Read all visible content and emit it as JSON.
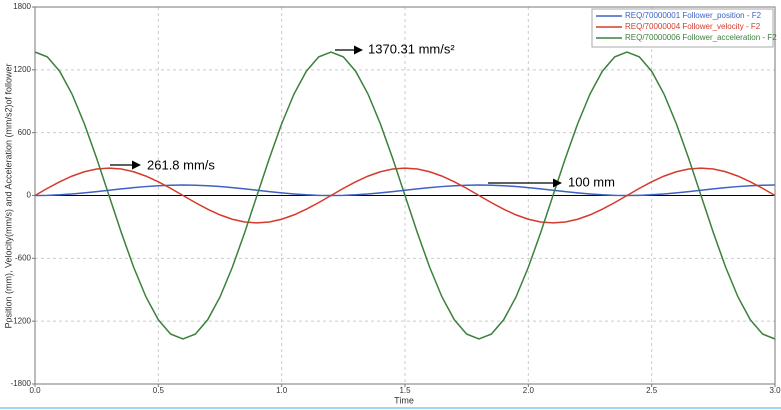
{
  "chart_data": {
    "type": "line",
    "x_label": "Time",
    "y_label": "Position (mm), Velocity(mm/s) and Acceleration (mm/s2)of follower",
    "annotations": [
      "261.8 mm/s",
      "1370.31 mm/s²",
      "100 mm"
    ],
    "legend": "top-right",
    "grid": true,
    "xlim": [
      0,
      3
    ],
    "ylim": [
      -1800,
      1800
    ],
    "xticks": [
      {
        "value": 0,
        "label": "0.0"
      },
      0.5,
      {
        "value": 1,
        "label": "1.0"
      },
      1.5,
      {
        "value": 2,
        "label": "2.0"
      },
      2.5,
      {
        "value": 3,
        "label": "3.0"
      }
    ],
    "yticks": [
      -1800,
      -1200,
      -600,
      0,
      600,
      1200,
      1800
    ],
    "x": [
      0,
      0.05,
      0.1,
      0.15,
      0.2,
      0.25,
      0.3,
      0.35,
      0.4,
      0.45,
      0.5,
      0.55,
      0.6,
      0.65,
      0.7,
      0.75,
      0.8,
      0.85,
      0.9,
      0.95,
      1,
      1.05,
      1.1,
      1.15,
      1.2,
      1.25,
      1.3,
      1.35,
      1.4,
      1.45,
      1.5,
      1.55,
      1.6,
      1.65,
      1.7,
      1.75,
      1.8,
      1.85,
      1.9,
      1.95,
      2,
      2.05,
      2.1,
      2.15,
      2.2,
      2.25,
      2.3,
      2.35,
      2.4,
      2.45,
      2.5,
      2.55,
      2.6,
      2.65,
      2.7,
      2.75,
      2.8,
      2.85,
      2.9,
      2.95,
      3
    ],
    "series": [
      {
        "name": "REQ/70000001 Follower_position - F2",
        "color": "#3e62c4",
        "values": [
          0,
          1.7,
          6.7,
          14.6,
          25,
          37.1,
          50,
          62.9,
          75,
          85.4,
          93.3,
          98.3,
          100,
          98.3,
          93.3,
          85.4,
          75,
          62.9,
          50,
          37.1,
          25,
          14.6,
          6.7,
          1.7,
          0,
          1.7,
          6.7,
          14.6,
          25,
          37.1,
          50,
          62.9,
          75,
          85.4,
          93.3,
          98.3,
          100,
          98.3,
          93.3,
          85.4,
          75,
          62.9,
          50,
          37.1,
          25,
          14.6,
          6.7,
          1.7,
          0,
          1.7,
          6.7,
          14.6,
          25,
          37.1,
          50,
          62.9,
          75,
          85.4,
          93.3,
          98.3,
          100
        ]
      },
      {
        "name": "REQ/70000004 Follower_velocity - F2",
        "color": "#d63a2a",
        "values": [
          0,
          67.8,
          130.9,
          185.1,
          226.7,
          252.9,
          261.8,
          252.9,
          226.7,
          185.1,
          130.9,
          67.8,
          0,
          -67.8,
          -130.9,
          -185.1,
          -226.7,
          -252.9,
          -261.8,
          -252.9,
          -226.7,
          -185.1,
          -130.9,
          -67.8,
          0,
          67.8,
          130.9,
          185.1,
          226.7,
          252.9,
          261.8,
          252.9,
          226.7,
          185.1,
          130.9,
          67.8,
          0,
          -67.8,
          -130.9,
          -185.1,
          -226.7,
          -252.9,
          -261.8,
          -252.9,
          -226.7,
          -185.1,
          -130.9,
          -67.8,
          0,
          67.8,
          130.9,
          185.1,
          226.7,
          252.9,
          261.8,
          252.9,
          226.7,
          185.1,
          130.9,
          67.8,
          0
        ]
      },
      {
        "name": "REQ/70000006 Follower_acceleration - F2",
        "color": "#3b803b",
        "values": [
          1370.3,
          1323.6,
          1186.7,
          969,
          685.2,
          354.7,
          0,
          -354.7,
          -685.2,
          -969,
          -1186.7,
          -1323.6,
          -1370.3,
          -1323.6,
          -1186.7,
          -969,
          -685.2,
          -354.7,
          0,
          354.7,
          685.2,
          969,
          1186.7,
          1323.6,
          1370.3,
          1323.6,
          1186.7,
          969,
          685.2,
          354.7,
          0,
          -354.7,
          -685.2,
          -969,
          -1186.7,
          -1323.6,
          -1370.3,
          -1323.6,
          -1186.7,
          -969,
          -685.2,
          -354.7,
          0,
          354.7,
          685.2,
          969,
          1186.7,
          1323.6,
          1370.3,
          1323.6,
          1186.7,
          969,
          685.2,
          354.7,
          0,
          -354.7,
          -685.2,
          -969,
          -1186.7,
          -1323.6,
          -1370.3
        ]
      }
    ]
  }
}
